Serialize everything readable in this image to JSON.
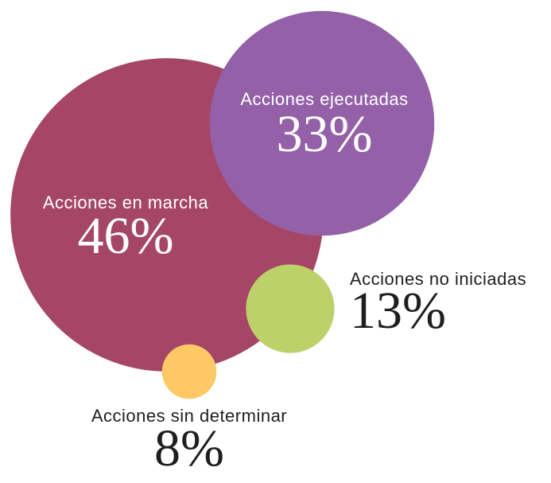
{
  "chart_data": {
    "type": "bubble",
    "categories": [
      "Acciones en marcha",
      "Acciones ejecutadas",
      "Acciones no iniciadas",
      "Acciones sin determinar"
    ],
    "values": [
      46,
      33,
      13,
      8
    ],
    "value_labels": [
      "46%",
      "33%",
      "13%",
      "8%"
    ],
    "colors": [
      "#a64667",
      "#9461a8",
      "#bdd16a",
      "#fdc865"
    ]
  }
}
